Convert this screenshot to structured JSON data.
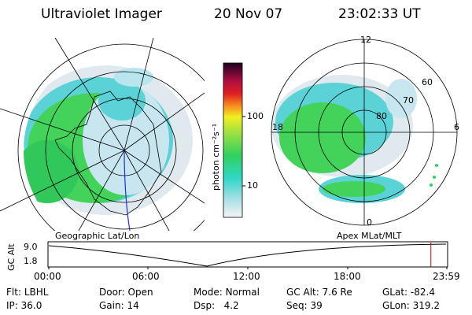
{
  "header": {
    "instrument": "Ultraviolet Imager",
    "date": "20 Nov 07",
    "time": "23:02:33 UT"
  },
  "left_panel": {
    "label": "Geographic Lat/Lon"
  },
  "right_panel": {
    "label": "Apex MLat/MLT",
    "mlt_labels": {
      "top": "12",
      "left": "18",
      "right": "6",
      "bottom": "0"
    },
    "lat_labels": [
      "60",
      "70",
      "80"
    ]
  },
  "colorbar": {
    "unit": "photon cm⁻²s⁻¹",
    "ticks": [
      "100",
      "10"
    ]
  },
  "timeline": {
    "ylabel": "GC Alt",
    "ymax": "9.0",
    "ymin": "1.8",
    "xticks": [
      "00:00",
      "06:00",
      "12:00",
      "18:00",
      "23:59"
    ],
    "current_marker_fraction": 0.96,
    "marker_color": "#cc0000"
  },
  "info": {
    "flt": {
      "label": "Flt:",
      "value": "LBHL"
    },
    "door": {
      "label": "Door:",
      "value": "Open"
    },
    "mode": {
      "label": "Mode:",
      "value": "Normal"
    },
    "gcalt": {
      "label": "GC Alt:",
      "value": "7.6 Re"
    },
    "glat": {
      "label": "GLat:",
      "value": "-82.4"
    },
    "ip": {
      "label": "IP:",
      "value": "36.0"
    },
    "gain": {
      "label": "Gain:",
      "value": "14"
    },
    "dsp": {
      "label": "Dsp:",
      "value": "4.2"
    },
    "seq": {
      "label": "Seq:",
      "value": "39"
    },
    "glon": {
      "label": "GLon:",
      "value": "319.2"
    }
  }
}
